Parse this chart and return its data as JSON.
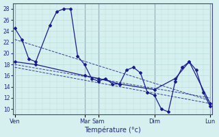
{
  "xlabel": "Température (°c)",
  "background_color": "#d6f0f0",
  "grid_color": "#b8ddd8",
  "line_color": "#1a1a8c",
  "ylim": [
    9,
    29
  ],
  "yticks": [
    10,
    12,
    14,
    16,
    18,
    20,
    22,
    24,
    26,
    28
  ],
  "xtick_positions": [
    0,
    10,
    12,
    20,
    28
  ],
  "xtick_labels": [
    "Ven",
    "Mar",
    "Sam",
    "Dim",
    "Lun"
  ],
  "vlines_x": [
    0,
    10,
    12,
    20,
    28
  ],
  "series_main": {
    "x": [
      0,
      1,
      2,
      3,
      5,
      6,
      7,
      8,
      9,
      10,
      11,
      12,
      13,
      14,
      15,
      16,
      17,
      18,
      19,
      20,
      21,
      22,
      23,
      24,
      25,
      26,
      27,
      28
    ],
    "y": [
      24.5,
      22.5,
      19.0,
      18.5,
      25.0,
      27.5,
      28.0,
      28.0,
      19.5,
      18.0,
      15.5,
      15.0,
      15.5,
      14.5,
      14.5,
      17.0,
      17.5,
      16.5,
      13.0,
      12.5,
      10.0,
      9.5,
      15.0,
      17.5,
      18.5,
      17.0,
      13.0,
      10.5
    ]
  },
  "series_smooth": {
    "x": [
      0,
      3,
      10,
      12,
      15,
      20,
      23,
      25,
      28
    ],
    "y": [
      18.5,
      18.0,
      16.0,
      15.5,
      14.5,
      13.5,
      15.5,
      18.5,
      11.0
    ]
  },
  "trend1": {
    "x": [
      0,
      28
    ],
    "y": [
      22.5,
      11.5
    ]
  },
  "trend2": {
    "x": [
      0,
      28
    ],
    "y": [
      18.0,
      12.0
    ]
  },
  "trend3": {
    "x": [
      0,
      28
    ],
    "y": [
      17.5,
      11.0
    ]
  }
}
